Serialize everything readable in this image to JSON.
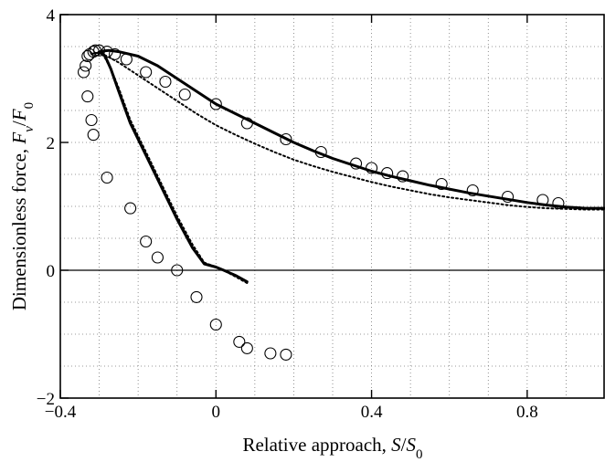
{
  "chart_data": {
    "type": "line",
    "xlabel": "Relative approach, S/S0",
    "ylabel": "Dimensionless force, Fv/F0",
    "xlim": [
      -0.4,
      1.0
    ],
    "ylim": [
      -2,
      4
    ],
    "xticks": [
      -0.4,
      0,
      0.4,
      0.8
    ],
    "xtick_labels": [
      "−0.4",
      "0",
      "0.4",
      "0.8"
    ],
    "yticks": [
      -2,
      0,
      2,
      4
    ],
    "ytick_labels": [
      "−2",
      "0",
      "2",
      "4"
    ],
    "grid": true,
    "zero_line": true,
    "series": [
      {
        "style": "solid",
        "x": [
          0.08,
          0.05,
          0.02,
          0.0,
          -0.03,
          -0.06,
          -0.1,
          -0.14,
          -0.18,
          -0.22,
          -0.25,
          -0.27,
          -0.285,
          -0.295,
          -0.3,
          -0.298,
          -0.29,
          -0.275,
          -0.25,
          -0.2,
          -0.15,
          -0.1,
          -0.05,
          0.0,
          0.05,
          0.1,
          0.15,
          0.2,
          0.25,
          0.3,
          0.35,
          0.4,
          0.45,
          0.5,
          0.55,
          0.6,
          0.65,
          0.7,
          0.75,
          0.8,
          0.85,
          0.9,
          0.95,
          1.0
        ],
        "y": [
          -0.18,
          -0.08,
          0.0,
          0.05,
          0.1,
          0.35,
          0.8,
          1.3,
          1.8,
          2.3,
          2.8,
          3.15,
          3.35,
          3.42,
          3.4,
          3.42,
          3.43,
          3.44,
          3.42,
          3.35,
          3.2,
          3.0,
          2.8,
          2.6,
          2.45,
          2.3,
          2.15,
          2.0,
          1.87,
          1.75,
          1.65,
          1.55,
          1.47,
          1.4,
          1.33,
          1.27,
          1.21,
          1.16,
          1.11,
          1.06,
          1.02,
          0.99,
          0.97,
          0.97
        ]
      },
      {
        "style": "dotted",
        "x": [
          0.08,
          0.05,
          0.02,
          0.0,
          -0.03,
          -0.06,
          -0.1,
          -0.14,
          -0.18,
          -0.22,
          -0.25,
          -0.27,
          -0.285,
          -0.295,
          -0.3,
          -0.31,
          -0.32,
          -0.31,
          -0.3,
          -0.28,
          -0.25,
          -0.2,
          -0.15,
          -0.1,
          -0.05,
          0.0,
          0.05,
          0.1,
          0.15,
          0.2,
          0.25,
          0.3,
          0.35,
          0.4,
          0.45,
          0.5,
          0.55,
          0.6,
          0.65,
          0.7,
          0.75,
          0.8,
          0.85,
          0.9,
          0.95,
          1.0
        ],
        "y": [
          -0.2,
          -0.1,
          0.0,
          0.05,
          0.12,
          0.4,
          0.85,
          1.35,
          1.85,
          2.35,
          2.85,
          3.15,
          3.32,
          3.4,
          3.42,
          3.4,
          3.38,
          3.4,
          3.4,
          3.35,
          3.25,
          3.05,
          2.85,
          2.65,
          2.45,
          2.27,
          2.12,
          1.98,
          1.85,
          1.73,
          1.63,
          1.54,
          1.46,
          1.38,
          1.31,
          1.25,
          1.19,
          1.14,
          1.1,
          1.06,
          1.02,
          0.99,
          0.97,
          0.96,
          0.95,
          0.95
        ]
      },
      {
        "style": "circles",
        "x": [
          -0.34,
          -0.335,
          -0.33,
          -0.325,
          -0.315,
          -0.31,
          -0.3,
          -0.28,
          -0.26,
          -0.23,
          -0.18,
          -0.13,
          -0.08,
          0.0,
          0.08,
          0.18,
          0.27,
          0.36,
          0.4,
          0.44,
          0.48,
          0.58,
          0.66,
          0.75,
          0.84,
          0.88,
          -0.33,
          -0.32,
          -0.315,
          -0.28,
          -0.22,
          -0.18,
          -0.15,
          -0.1,
          -0.05,
          0.0,
          0.06,
          0.08,
          0.14,
          0.18
        ],
        "y": [
          3.1,
          3.2,
          3.35,
          3.38,
          3.42,
          3.44,
          3.44,
          3.42,
          3.38,
          3.3,
          3.1,
          2.95,
          2.75,
          2.6,
          2.3,
          2.05,
          1.85,
          1.67,
          1.6,
          1.52,
          1.47,
          1.35,
          1.25,
          1.15,
          1.1,
          1.05,
          2.72,
          2.35,
          2.12,
          1.45,
          0.97,
          0.45,
          0.2,
          0.0,
          -0.42,
          -0.85,
          -1.12,
          -1.22,
          -1.3,
          -1.32
        ]
      }
    ]
  }
}
